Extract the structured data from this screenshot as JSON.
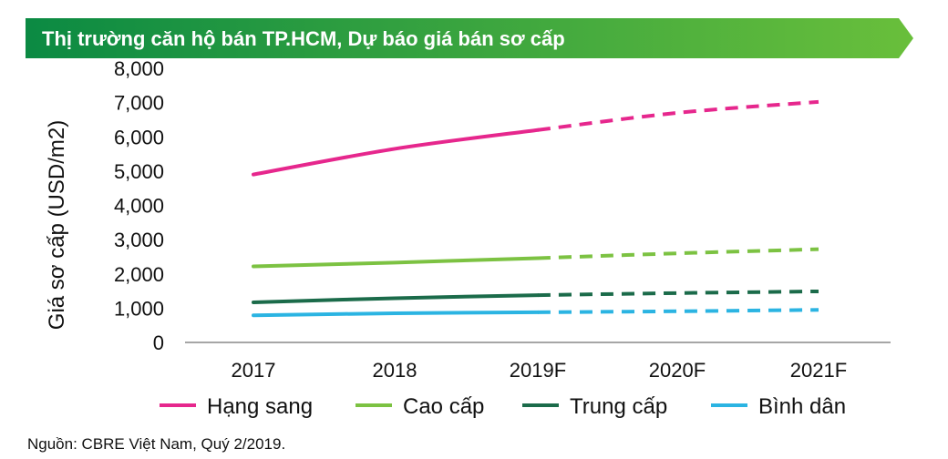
{
  "title": "Thị trường căn hộ bán TP.HCM, Dự báo giá bán sơ cấp",
  "source": "Nguồn: CBRE Việt Nam, Quý 2/2019.",
  "colors": {
    "banner_start": "#0b8a43",
    "banner_end": "#69bf3b"
  },
  "chart_data": {
    "type": "line",
    "categories": [
      "2017",
      "2018",
      "2019F",
      "2020F",
      "2021F"
    ],
    "ylabel": "Giá sơ cấp (USD/m2)",
    "xlabel": "",
    "ylim": [
      0,
      8000
    ],
    "yticks": [
      "8,000",
      "7,000",
      "6,000",
      "5,000",
      "4,000",
      "3,000",
      "2,000",
      "1,000",
      "0"
    ],
    "ytick_values": [
      8000,
      7000,
      6000,
      5000,
      4000,
      3000,
      2000,
      1000,
      0
    ],
    "forecast_from_index": 2,
    "legend_position": "bottom",
    "series": [
      {
        "name": "Hạng sang",
        "color": "#e6278d",
        "values": [
          4900,
          5650,
          6200,
          6700,
          7020
        ]
      },
      {
        "name": "Cao cấp",
        "color": "#7cc242",
        "values": [
          2220,
          2330,
          2460,
          2600,
          2720
        ]
      },
      {
        "name": "Trung cấp",
        "color": "#1b6b4a",
        "values": [
          1170,
          1290,
          1380,
          1440,
          1490
        ]
      },
      {
        "name": "Bình dân",
        "color": "#2bb4e2",
        "values": [
          790,
          850,
          880,
          910,
          950
        ]
      }
    ]
  }
}
